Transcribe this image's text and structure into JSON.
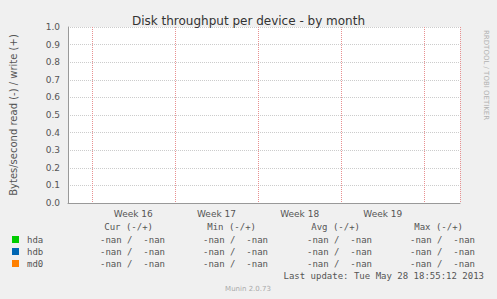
{
  "chart_data": {
    "type": "line",
    "title": "Disk throughput per device - by month",
    "y_label": "Bytes/second read (-) / write (+)",
    "x": [
      null,
      null,
      null,
      null,
      null,
      "Week 16",
      null,
      null,
      null,
      null,
      null,
      null,
      "Week 17",
      null,
      null,
      null,
      null,
      null,
      null,
      "Week 18",
      null,
      null,
      null,
      null,
      null,
      null,
      "Week 19",
      null,
      null,
      null,
      null,
      null,
      null
    ],
    "ylim": [
      0,
      1.0
    ],
    "yticks": [
      {
        "value": 0,
        "label": "0.0"
      },
      0.1,
      0.2,
      0.3,
      0.4,
      0.5,
      0.6,
      0.7,
      0.8,
      0.9,
      {
        "value": 1.0,
        "label": "1.0"
      }
    ],
    "grid": true,
    "series": [
      {
        "name": "hda",
        "color": "#00cc00",
        "values": [
          null,
          null,
          null,
          null,
          null,
          null,
          null,
          null,
          null,
          null,
          null,
          null,
          null,
          null,
          null,
          null,
          null,
          null,
          null,
          null,
          null,
          null,
          null,
          null,
          null,
          null,
          null,
          null,
          null,
          null,
          null,
          null,
          null
        ],
        "stats": [
          "-nan /  -nan",
          "-nan /  -nan",
          "-nan /  -nan",
          "-nan /  -nan"
        ]
      },
      {
        "name": "hdb",
        "color": "#0066b3",
        "values": [
          null,
          null,
          null,
          null,
          null,
          null,
          null,
          null,
          null,
          null,
          null,
          null,
          null,
          null,
          null,
          null,
          null,
          null,
          null,
          null,
          null,
          null,
          null,
          null,
          null,
          null,
          null,
          null,
          null,
          null,
          null,
          null,
          null
        ],
        "stats": [
          "-nan /  -nan",
          "-nan /  -nan",
          "-nan /  -nan",
          "-nan /  -nan"
        ]
      },
      {
        "name": "md0",
        "color": "#ff8000",
        "values": [
          null,
          null,
          null,
          null,
          null,
          null,
          null,
          null,
          null,
          null,
          null,
          null,
          null,
          null,
          null,
          null,
          null,
          null,
          null,
          null,
          null,
          null,
          null,
          null,
          null,
          null,
          null,
          null,
          null,
          null,
          null,
          null,
          null
        ],
        "stats": [
          "-nan /  -nan",
          "-nan /  -nan",
          "-nan /  -nan",
          "-nan /  -nan"
        ]
      }
    ],
    "stats_columns": [
      "Cur (-/+)",
      "Min (-/+)",
      "Avg (-/+)",
      "Max (-/+)"
    ],
    "footer": "Last update: Tue May 28 18:55:12 2013",
    "credit": "Munin 2.0.73",
    "side_text": "RRDTOOL / TOBI OETIKER"
  }
}
